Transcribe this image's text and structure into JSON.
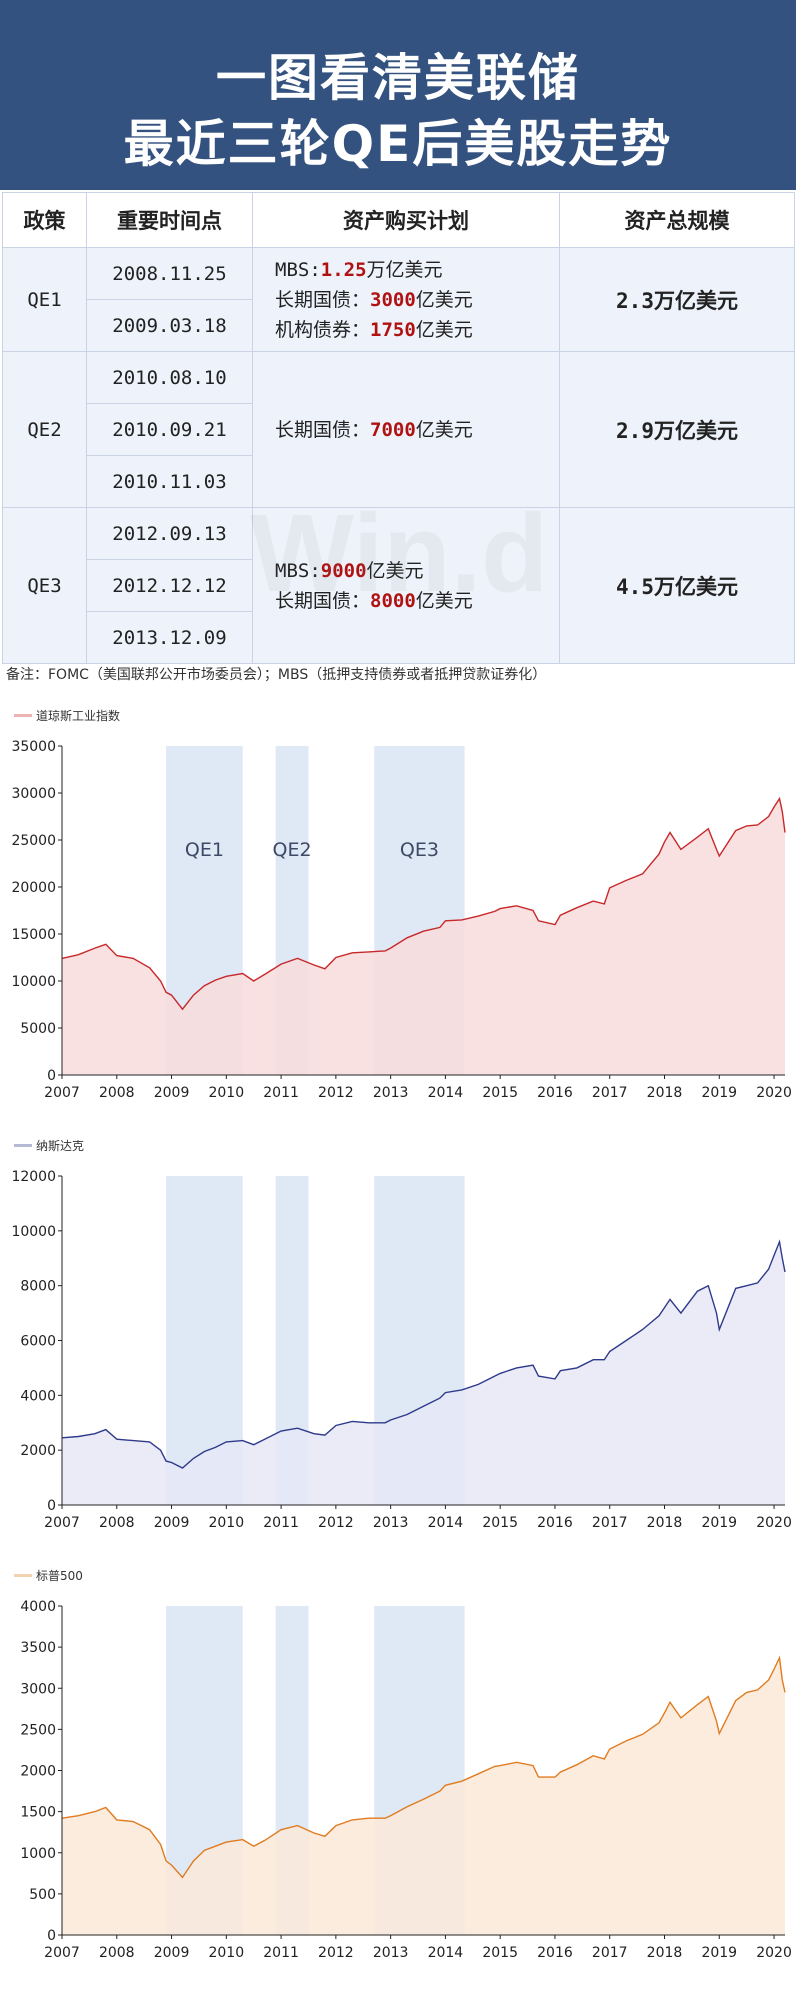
{
  "header": {
    "line1": "一图看清美联储",
    "line2": "最近三轮QE后美股走势"
  },
  "table": {
    "headers": [
      "政策",
      "重要时间点",
      "资产购买计划",
      "资产总规模"
    ],
    "rows": [
      {
        "policy": "QE1",
        "dates": [
          "2008.11.25",
          "2009.03.18"
        ],
        "plan": [
          {
            "pre": "MBS:",
            "num": "1.25",
            "post": "万亿美元"
          },
          {
            "pre": "长期国债：",
            "num": "3000",
            "post": "亿美元"
          },
          {
            "pre": "机构债券：",
            "num": "1750",
            "post": "亿美元"
          }
        ],
        "total": "2.3万亿美元"
      },
      {
        "policy": "QE2",
        "dates": [
          "2010.08.10",
          "2010.09.21",
          "2010.11.03"
        ],
        "plan": [
          {
            "pre": "长期国债：",
            "num": "7000",
            "post": "亿美元"
          }
        ],
        "total": "2.9万亿美元"
      },
      {
        "policy": "QE3",
        "dates": [
          "2012.09.13",
          "2012.12.12",
          "2013.12.09"
        ],
        "plan": [
          {
            "pre": "MBS:",
            "num": "9000",
            "post": "亿美元"
          },
          {
            "pre": "长期国债：",
            "num": "8000",
            "post": "亿美元"
          }
        ],
        "total": "4.5万亿美元"
      }
    ],
    "note": "备注：FOMC（美国联邦公开市场委员会）；MBS（抵押支持债券或者抵押贷款证券化）",
    "watermark": "Win.d"
  },
  "chart_data": [
    {
      "type": "area",
      "title": "道琼斯工业指数",
      "color": "#c8282a",
      "fill": "#f8dcdc",
      "ylim": [
        0,
        35000
      ],
      "yticks": [
        "35000",
        "30000",
        "25000",
        "20000",
        "15000",
        "10000",
        "5000",
        "0"
      ],
      "xlim": [
        2007,
        2020.2
      ],
      "xticks": [
        "2007",
        "2008",
        "2009",
        "2010",
        "2011",
        "2012",
        "2013",
        "2014",
        "2015",
        "2016",
        "2017",
        "2018",
        "2019",
        "2020"
      ],
      "shaded_periods": [
        {
          "label": "QE1",
          "from": 2008.9,
          "to": 2010.3
        },
        {
          "label": "QE2",
          "from": 2010.9,
          "to": 2011.5
        },
        {
          "label": "QE3",
          "from": 2012.7,
          "to": 2014.35
        }
      ],
      "x": [
        2007.0,
        2007.3,
        2007.6,
        2007.8,
        2008.0,
        2008.3,
        2008.6,
        2008.8,
        2008.9,
        2009.0,
        2009.2,
        2009.4,
        2009.6,
        2009.8,
        2010.0,
        2010.3,
        2010.5,
        2010.7,
        2011.0,
        2011.3,
        2011.6,
        2011.8,
        2012.0,
        2012.3,
        2012.6,
        2012.9,
        2013.0,
        2013.3,
        2013.6,
        2013.9,
        2014.0,
        2014.3,
        2014.6,
        2014.9,
        2015.0,
        2015.3,
        2015.6,
        2015.7,
        2016.0,
        2016.1,
        2016.4,
        2016.7,
        2016.9,
        2017.0,
        2017.3,
        2017.6,
        2017.9,
        2018.0,
        2018.1,
        2018.3,
        2018.6,
        2018.8,
        2018.95,
        2019.0,
        2019.3,
        2019.5,
        2019.7,
        2019.9,
        2020.0,
        2020.1,
        2020.15,
        2020.2
      ],
      "y": [
        12400,
        12800,
        13500,
        13900,
        12700,
        12400,
        11400,
        10000,
        8800,
        8500,
        7000,
        8500,
        9500,
        10100,
        10500,
        10800,
        10000,
        10700,
        11800,
        12400,
        11700,
        11300,
        12500,
        13000,
        13100,
        13200,
        13500,
        14600,
        15300,
        15700,
        16400,
        16500,
        16900,
        17400,
        17700,
        18000,
        17500,
        16400,
        16000,
        17000,
        17800,
        18500,
        18200,
        19900,
        20700,
        21400,
        23500,
        24800,
        25800,
        24000,
        25300,
        26200,
        24000,
        23300,
        26000,
        26500,
        26600,
        27500,
        28500,
        29400,
        28000,
        25800
      ]
    },
    {
      "type": "area",
      "title": "纳斯达克",
      "color": "#2e3a8a",
      "fill": "#e6e8f6",
      "ylim": [
        0,
        12000
      ],
      "yticks": [
        "12000",
        "10000",
        "8000",
        "6000",
        "4000",
        "2000",
        "0"
      ],
      "xlim": [
        2007,
        2020.2
      ],
      "xticks": [
        "2007",
        "2008",
        "2009",
        "2010",
        "2011",
        "2012",
        "2013",
        "2014",
        "2015",
        "2016",
        "2017",
        "2018",
        "2019",
        "2020"
      ],
      "shaded_periods": [
        {
          "from": 2008.9,
          "to": 2010.3
        },
        {
          "from": 2010.9,
          "to": 2011.5
        },
        {
          "from": 2012.7,
          "to": 2014.35
        }
      ],
      "x": [
        2007.0,
        2007.3,
        2007.6,
        2007.8,
        2008.0,
        2008.3,
        2008.6,
        2008.8,
        2008.9,
        2009.0,
        2009.2,
        2009.4,
        2009.6,
        2009.8,
        2010.0,
        2010.3,
        2010.5,
        2010.7,
        2011.0,
        2011.3,
        2011.6,
        2011.8,
        2012.0,
        2012.3,
        2012.6,
        2012.9,
        2013.0,
        2013.3,
        2013.6,
        2013.9,
        2014.0,
        2014.3,
        2014.6,
        2014.9,
        2015.0,
        2015.3,
        2015.6,
        2015.7,
        2016.0,
        2016.1,
        2016.4,
        2016.7,
        2016.9,
        2017.0,
        2017.3,
        2017.6,
        2017.9,
        2018.0,
        2018.1,
        2018.3,
        2018.6,
        2018.8,
        2018.95,
        2019.0,
        2019.3,
        2019.5,
        2019.7,
        2019.9,
        2020.0,
        2020.1,
        2020.15,
        2020.2
      ],
      "y": [
        2450,
        2500,
        2600,
        2750,
        2400,
        2350,
        2300,
        2000,
        1600,
        1550,
        1350,
        1700,
        1950,
        2100,
        2300,
        2350,
        2200,
        2400,
        2700,
        2800,
        2600,
        2550,
        2900,
        3050,
        3000,
        3000,
        3100,
        3300,
        3600,
        3900,
        4100,
        4200,
        4400,
        4700,
        4800,
        5000,
        5100,
        4700,
        4600,
        4900,
        5000,
        5300,
        5300,
        5600,
        6000,
        6400,
        6900,
        7200,
        7500,
        7000,
        7800,
        8000,
        7000,
        6400,
        7900,
        8000,
        8100,
        8600,
        9100,
        9600,
        9000,
        8500
      ]
    },
    {
      "type": "area",
      "title": "标普500",
      "color": "#e07b20",
      "fill": "#fbe9d8",
      "ylim": [
        0,
        4000
      ],
      "yticks": [
        "4000",
        "3500",
        "3000",
        "2500",
        "2000",
        "1500",
        "1000",
        "500",
        "0"
      ],
      "xlim": [
        2007,
        2020.2
      ],
      "xticks": [
        "2007",
        "2008",
        "2009",
        "2010",
        "2011",
        "2012",
        "2013",
        "2014",
        "2015",
        "2016",
        "2017",
        "2018",
        "2019",
        "2020"
      ],
      "shaded_periods": [
        {
          "from": 2008.9,
          "to": 2010.3
        },
        {
          "from": 2010.9,
          "to": 2011.5
        },
        {
          "from": 2012.7,
          "to": 2014.35
        }
      ],
      "x": [
        2007.0,
        2007.3,
        2007.6,
        2007.8,
        2008.0,
        2008.3,
        2008.6,
        2008.8,
        2008.9,
        2009.0,
        2009.2,
        2009.4,
        2009.6,
        2009.8,
        2010.0,
        2010.3,
        2010.5,
        2010.7,
        2011.0,
        2011.3,
        2011.6,
        2011.8,
        2012.0,
        2012.3,
        2012.6,
        2012.9,
        2013.0,
        2013.3,
        2013.6,
        2013.9,
        2014.0,
        2014.3,
        2014.6,
        2014.9,
        2015.0,
        2015.3,
        2015.6,
        2015.7,
        2016.0,
        2016.1,
        2016.4,
        2016.7,
        2016.9,
        2017.0,
        2017.3,
        2017.6,
        2017.9,
        2018.0,
        2018.1,
        2018.3,
        2018.6,
        2018.8,
        2018.95,
        2019.0,
        2019.3,
        2019.5,
        2019.7,
        2019.9,
        2020.0,
        2020.1,
        2020.15,
        2020.2
      ],
      "y": [
        1420,
        1450,
        1500,
        1550,
        1400,
        1380,
        1280,
        1100,
        900,
        850,
        700,
        900,
        1030,
        1080,
        1130,
        1160,
        1080,
        1150,
        1280,
        1330,
        1240,
        1200,
        1330,
        1400,
        1420,
        1420,
        1450,
        1560,
        1650,
        1750,
        1820,
        1870,
        1960,
        2050,
        2060,
        2100,
        2060,
        1920,
        1920,
        1980,
        2070,
        2180,
        2140,
        2260,
        2360,
        2440,
        2580,
        2700,
        2830,
        2640,
        2800,
        2900,
        2600,
        2450,
        2850,
        2950,
        2980,
        3100,
        3230,
        3370,
        3100,
        2950
      ]
    }
  ]
}
